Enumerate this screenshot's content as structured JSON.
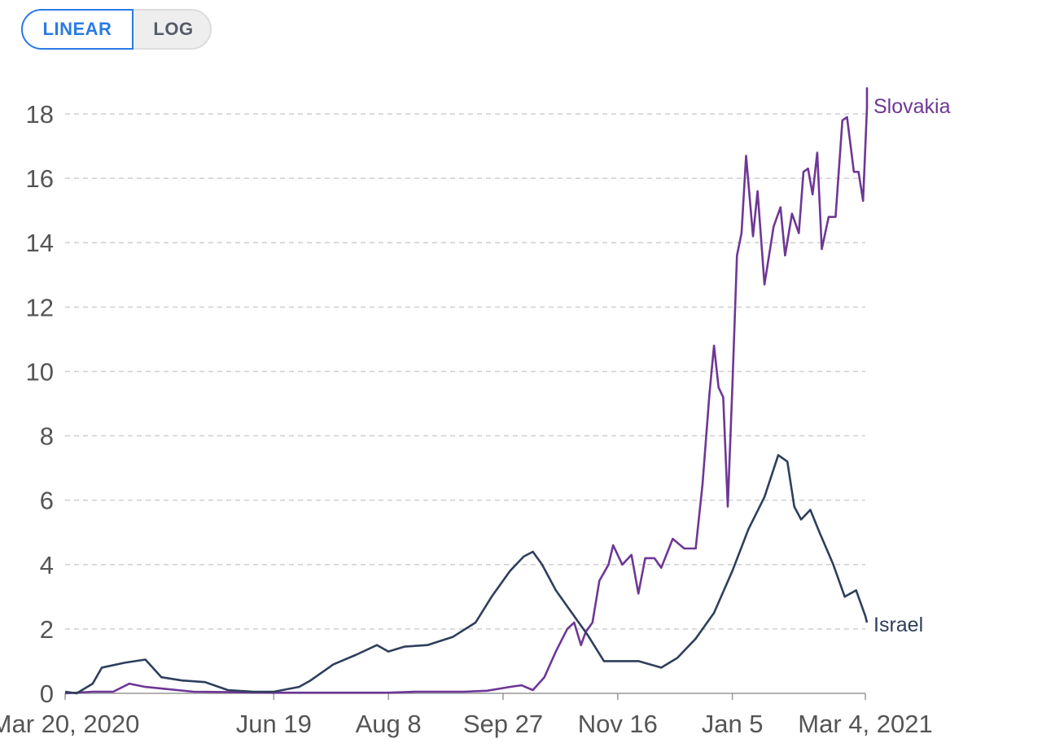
{
  "controls": {
    "scale_options": [
      "LINEAR",
      "LOG"
    ],
    "linear_label": "LINEAR",
    "log_label": "LOG",
    "selected": "LINEAR"
  },
  "colors": {
    "accent": "#2a7be4",
    "slovakia": "#6e3796",
    "israel": "#2e3f5c",
    "grid": "#cfcfcf",
    "axis_text": "#555555"
  },
  "chart_data": {
    "type": "line",
    "title": "",
    "xlabel": "",
    "ylabel": "",
    "x_start_date": "2020-03-20",
    "x_end_date": "2021-03-04",
    "xlim": [
      "2020-03-20",
      "2021-03-04"
    ],
    "ylim": [
      0,
      18.5
    ],
    "y_ticks": [
      0,
      2,
      4,
      6,
      8,
      10,
      12,
      14,
      16,
      18
    ],
    "y_tick_labels": [
      "0",
      "2",
      "4",
      "6",
      "8",
      "10",
      "12",
      "14",
      "16",
      "18"
    ],
    "x_ticks": [
      "2020-03-20",
      "2020-06-19",
      "2020-08-08",
      "2020-09-27",
      "2020-11-16",
      "2021-01-05",
      "2021-03-04"
    ],
    "x_tick_labels": [
      "Mar 20, 2020",
      "Jun 19",
      "Aug 8",
      "Sep 27",
      "Nov 16",
      "Jan 5",
      "Mar 4, 2021"
    ],
    "grid": "horizontal dashed",
    "legend": "line-end labels",
    "series": [
      {
        "name": "Slovakia",
        "color": "#6e3796",
        "points": [
          [
            "2020-03-20",
            0.0
          ],
          [
            "2020-04-01",
            0.05
          ],
          [
            "2020-04-10",
            0.05
          ],
          [
            "2020-04-17",
            0.3
          ],
          [
            "2020-04-24",
            0.2
          ],
          [
            "2020-05-01",
            0.15
          ],
          [
            "2020-05-15",
            0.05
          ],
          [
            "2020-06-19",
            0.02
          ],
          [
            "2020-08-08",
            0.02
          ],
          [
            "2020-08-20",
            0.05
          ],
          [
            "2020-09-10",
            0.05
          ],
          [
            "2020-09-20",
            0.08
          ],
          [
            "2020-09-30",
            0.2
          ],
          [
            "2020-10-05",
            0.25
          ],
          [
            "2020-10-10",
            0.1
          ],
          [
            "2020-10-15",
            0.5
          ],
          [
            "2020-10-20",
            1.3
          ],
          [
            "2020-10-25",
            2.0
          ],
          [
            "2020-10-28",
            2.2
          ],
          [
            "2020-10-31",
            1.5
          ],
          [
            "2020-11-02",
            1.9
          ],
          [
            "2020-11-05",
            2.2
          ],
          [
            "2020-11-08",
            3.5
          ],
          [
            "2020-11-12",
            4.0
          ],
          [
            "2020-11-14",
            4.6
          ],
          [
            "2020-11-18",
            4.0
          ],
          [
            "2020-11-22",
            4.3
          ],
          [
            "2020-11-25",
            3.1
          ],
          [
            "2020-11-28",
            4.2
          ],
          [
            "2020-12-02",
            4.2
          ],
          [
            "2020-12-05",
            3.9
          ],
          [
            "2020-12-10",
            4.8
          ],
          [
            "2020-12-15",
            4.5
          ],
          [
            "2020-12-20",
            4.5
          ],
          [
            "2020-12-23",
            6.5
          ],
          [
            "2020-12-26",
            9.3
          ],
          [
            "2020-12-28",
            10.8
          ],
          [
            "2020-12-30",
            9.5
          ],
          [
            "2021-01-01",
            9.2
          ],
          [
            "2021-01-03",
            5.8
          ],
          [
            "2021-01-05",
            9.5
          ],
          [
            "2021-01-07",
            13.6
          ],
          [
            "2021-01-09",
            14.3
          ],
          [
            "2021-01-11",
            16.7
          ],
          [
            "2021-01-14",
            14.2
          ],
          [
            "2021-01-16",
            15.6
          ],
          [
            "2021-01-19",
            12.7
          ],
          [
            "2021-01-23",
            14.5
          ],
          [
            "2021-01-26",
            15.1
          ],
          [
            "2021-01-28",
            13.6
          ],
          [
            "2021-01-31",
            14.9
          ],
          [
            "2021-02-03",
            14.3
          ],
          [
            "2021-02-05",
            16.2
          ],
          [
            "2021-02-07",
            16.3
          ],
          [
            "2021-02-09",
            15.5
          ],
          [
            "2021-02-11",
            16.8
          ],
          [
            "2021-02-13",
            13.8
          ],
          [
            "2021-02-16",
            14.8
          ],
          [
            "2021-02-19",
            14.8
          ],
          [
            "2021-02-22",
            17.8
          ],
          [
            "2021-02-24",
            17.9
          ],
          [
            "2021-02-27",
            16.2
          ],
          [
            "2021-03-01",
            16.2
          ],
          [
            "2021-03-03",
            15.3
          ],
          [
            "2021-03-06",
            18.2
          ],
          [
            "2021-03-08",
            18.8
          ],
          [
            "2021-03-10",
            18.4
          ]
        ]
      },
      {
        "name": "Israel",
        "color": "#2e3f5c",
        "points": [
          [
            "2020-03-20",
            0.05
          ],
          [
            "2020-03-25",
            0.0
          ],
          [
            "2020-04-01",
            0.3
          ],
          [
            "2020-04-05",
            0.8
          ],
          [
            "2020-04-15",
            0.95
          ],
          [
            "2020-04-24",
            1.05
          ],
          [
            "2020-05-01",
            0.5
          ],
          [
            "2020-05-10",
            0.4
          ],
          [
            "2020-05-20",
            0.35
          ],
          [
            "2020-05-30",
            0.1
          ],
          [
            "2020-06-10",
            0.05
          ],
          [
            "2020-06-19",
            0.05
          ],
          [
            "2020-06-30",
            0.2
          ],
          [
            "2020-07-05",
            0.4
          ],
          [
            "2020-07-15",
            0.9
          ],
          [
            "2020-07-25",
            1.2
          ],
          [
            "2020-08-03",
            1.5
          ],
          [
            "2020-08-08",
            1.3
          ],
          [
            "2020-08-15",
            1.45
          ],
          [
            "2020-08-25",
            1.5
          ],
          [
            "2020-09-05",
            1.75
          ],
          [
            "2020-09-15",
            2.2
          ],
          [
            "2020-09-22",
            3.0
          ],
          [
            "2020-09-30",
            3.8
          ],
          [
            "2020-10-06",
            4.25
          ],
          [
            "2020-10-10",
            4.4
          ],
          [
            "2020-10-14",
            4.0
          ],
          [
            "2020-10-20",
            3.2
          ],
          [
            "2020-10-27",
            2.5
          ],
          [
            "2020-11-03",
            1.8
          ],
          [
            "2020-11-10",
            1.0
          ],
          [
            "2020-11-16",
            1.0
          ],
          [
            "2020-11-25",
            1.0
          ],
          [
            "2020-12-05",
            0.8
          ],
          [
            "2020-12-12",
            1.1
          ],
          [
            "2020-12-20",
            1.7
          ],
          [
            "2020-12-28",
            2.5
          ],
          [
            "2021-01-05",
            3.8
          ],
          [
            "2021-01-12",
            5.1
          ],
          [
            "2021-01-19",
            6.1
          ],
          [
            "2021-01-25",
            7.4
          ],
          [
            "2021-01-29",
            7.2
          ],
          [
            "2021-02-01",
            5.8
          ],
          [
            "2021-02-04",
            5.4
          ],
          [
            "2021-02-08",
            5.7
          ],
          [
            "2021-02-12",
            5.0
          ],
          [
            "2021-02-18",
            4.0
          ],
          [
            "2021-02-23",
            3.0
          ],
          [
            "2021-02-28",
            3.2
          ],
          [
            "2021-03-04",
            2.4
          ],
          [
            "2021-03-06",
            2.2
          ]
        ]
      }
    ]
  }
}
